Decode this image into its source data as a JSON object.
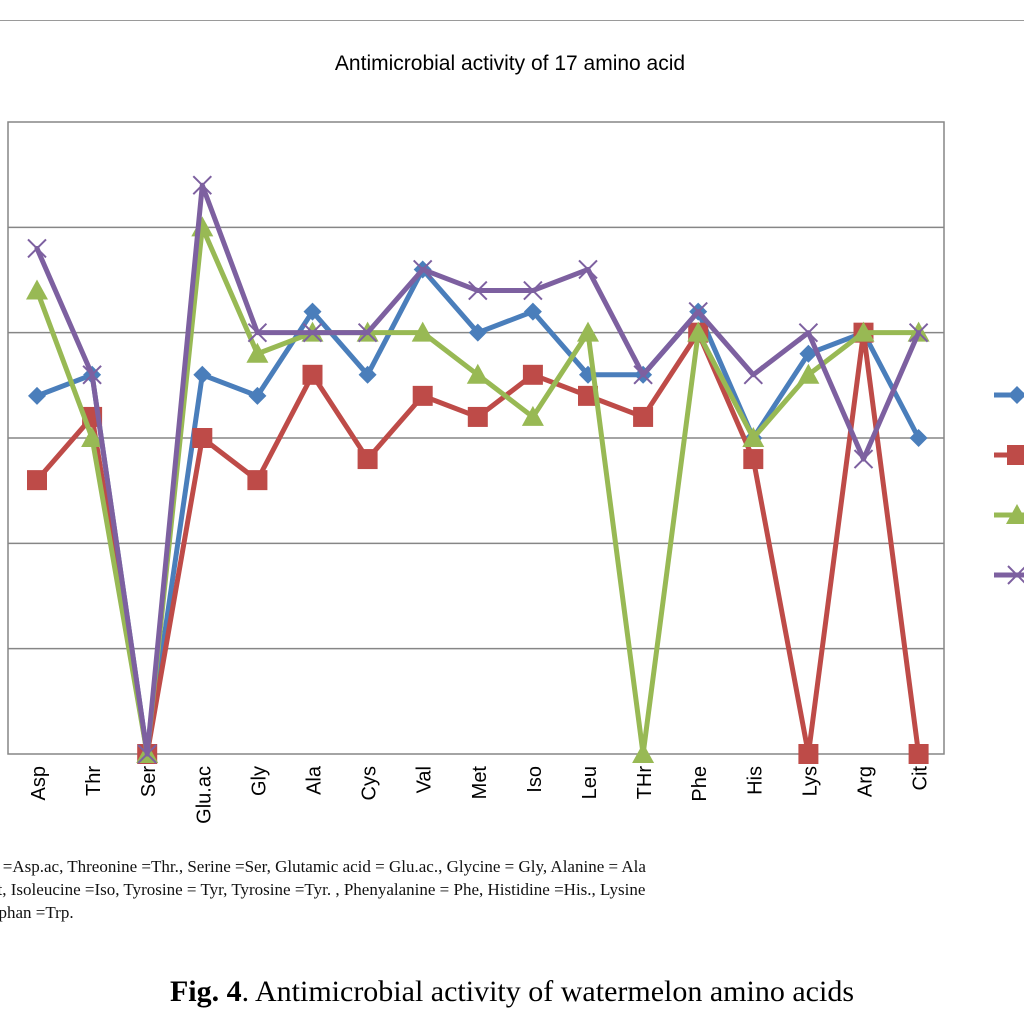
{
  "chart_data": {
    "type": "line",
    "title": "Antimicrobial activity of 17 amino acid",
    "categories": [
      "Asp",
      "Thr",
      "Ser",
      "Glu.ac",
      "Gly",
      "Ala",
      "Cys",
      "Val",
      "Met",
      "Iso",
      "Leu",
      "THr",
      "Phe",
      "His",
      "Lys",
      "Arg",
      "Cit"
    ],
    "ylim": [
      0,
      6
    ],
    "grid": true,
    "legend": "right",
    "series": [
      {
        "color": "#4a7ebb",
        "marker": "diamond",
        "values": [
          3.4,
          3.6,
          0.0,
          3.6,
          3.4,
          4.2,
          3.6,
          4.6,
          4.0,
          4.2,
          3.6,
          3.6,
          4.2,
          3.0,
          3.8,
          4.0,
          3.0
        ]
      },
      {
        "color": "#be4b48",
        "marker": "square",
        "values": [
          2.6,
          3.2,
          0.0,
          3.0,
          2.6,
          3.6,
          2.8,
          3.4,
          3.2,
          3.6,
          3.4,
          3.2,
          4.0,
          2.8,
          0.0,
          4.0,
          0.0
        ]
      },
      {
        "color": "#98b954",
        "marker": "triangle",
        "values": [
          4.4,
          3.0,
          0.0,
          5.0,
          3.8,
          4.0,
          4.0,
          4.0,
          3.6,
          3.2,
          4.0,
          0.0,
          4.0,
          3.0,
          3.6,
          4.0,
          4.0
        ]
      },
      {
        "color": "#7d60a0",
        "marker": "cross",
        "values": [
          4.8,
          3.6,
          0.0,
          5.4,
          4.0,
          4.0,
          4.0,
          4.6,
          4.4,
          4.4,
          4.6,
          3.6,
          4.2,
          3.6,
          4.0,
          2.8,
          4.0
        ]
      }
    ]
  },
  "caption": {
    "line1": "d =Asp.ac, Threonine =Thr., Serine =Ser, Glutamic acid = Glu.ac., Glycine = Gly, Alanine = Ala",
    "line2": "et, Isoleucine =Iso, Tyrosine = Tyr, Tyrosine =Tyr. , Phenyalanine = Phe, Histidine =His., Lysine",
    "line3": "ophan =Trp."
  },
  "figure": {
    "label": "Fig. 4",
    "text": ". Antimicrobial activity of watermelon amino acids"
  }
}
